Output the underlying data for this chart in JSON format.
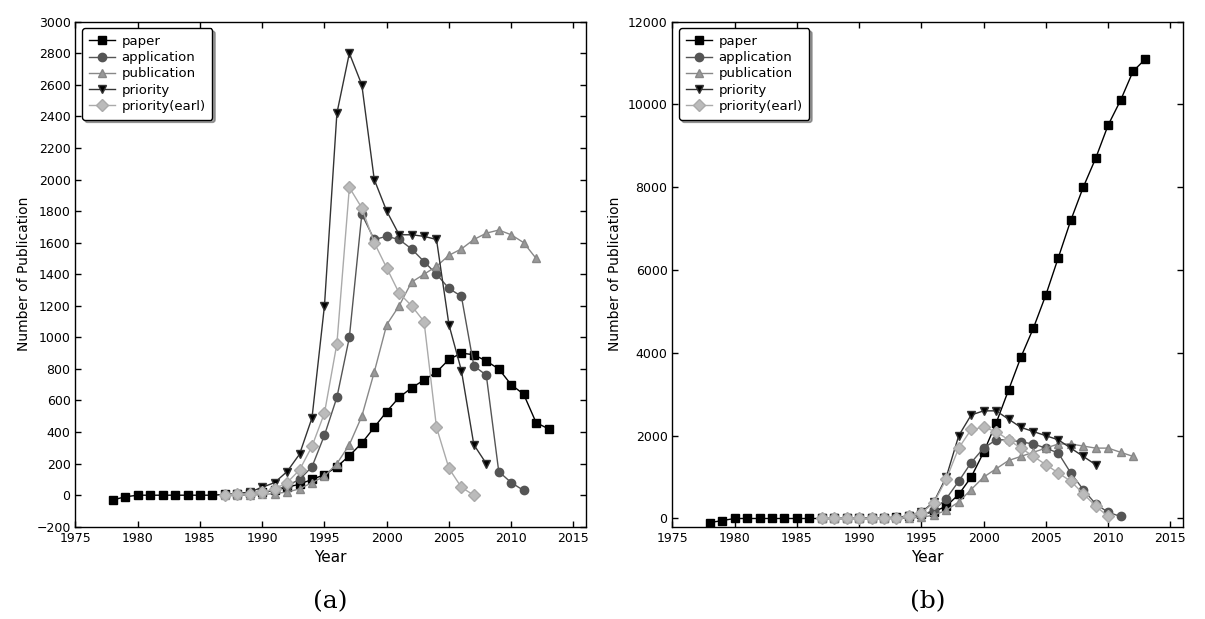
{
  "a": {
    "years": [
      1978,
      1979,
      1980,
      1981,
      1982,
      1983,
      1984,
      1985,
      1986,
      1987,
      1988,
      1989,
      1990,
      1991,
      1992,
      1993,
      1994,
      1995,
      1996,
      1997,
      1998,
      1999,
      2000,
      2001,
      2002,
      2003,
      2004,
      2005,
      2006,
      2007,
      2008,
      2009,
      2010,
      2011,
      2012,
      2013
    ],
    "paper": [
      -30,
      -10,
      0,
      0,
      0,
      0,
      0,
      0,
      0,
      5,
      10,
      15,
      20,
      30,
      50,
      70,
      100,
      130,
      180,
      250,
      330,
      430,
      530,
      620,
      680,
      730,
      780,
      860,
      900,
      890,
      850,
      800,
      700,
      640,
      460,
      420
    ],
    "application": [
      null,
      null,
      null,
      null,
      null,
      null,
      null,
      null,
      null,
      0,
      5,
      10,
      20,
      30,
      60,
      100,
      180,
      380,
      620,
      1000,
      1780,
      1620,
      1640,
      1620,
      1560,
      1480,
      1400,
      1310,
      1260,
      820,
      760,
      150,
      80,
      30,
      null,
      null
    ],
    "publication": [
      null,
      null,
      null,
      null,
      null,
      null,
      null,
      null,
      null,
      0,
      0,
      0,
      5,
      10,
      20,
      40,
      80,
      120,
      200,
      320,
      500,
      780,
      1080,
      1200,
      1350,
      1400,
      1450,
      1520,
      1560,
      1620,
      1660,
      1680,
      1650,
      1600,
      1500,
      null
    ],
    "priority": [
      null,
      null,
      null,
      null,
      null,
      null,
      null,
      null,
      null,
      0,
      10,
      20,
      50,
      80,
      150,
      260,
      490,
      1200,
      2420,
      2800,
      2600,
      2000,
      1800,
      1650,
      1650,
      1640,
      1620,
      1080,
      790,
      320,
      200,
      null,
      null,
      null,
      null,
      null
    ],
    "priority_earl": [
      null,
      null,
      null,
      null,
      null,
      null,
      null,
      null,
      null,
      0,
      5,
      10,
      20,
      40,
      80,
      160,
      310,
      520,
      960,
      1950,
      1820,
      1600,
      1440,
      1280,
      1200,
      1100,
      430,
      170,
      50,
      0,
      null,
      null,
      null,
      null,
      null,
      null
    ]
  },
  "b": {
    "years": [
      1978,
      1979,
      1980,
      1981,
      1982,
      1983,
      1984,
      1985,
      1986,
      1987,
      1988,
      1989,
      1990,
      1991,
      1992,
      1993,
      1994,
      1995,
      1996,
      1997,
      1998,
      1999,
      2000,
      2001,
      2002,
      2003,
      2004,
      2005,
      2006,
      2007,
      2008,
      2009,
      2010,
      2011,
      2012,
      2013
    ],
    "paper": [
      -100,
      -50,
      0,
      0,
      0,
      0,
      0,
      0,
      0,
      0,
      0,
      5,
      10,
      15,
      20,
      30,
      60,
      100,
      160,
      300,
      580,
      1000,
      1600,
      2300,
      3100,
      3900,
      4600,
      5400,
      6300,
      7200,
      8000,
      8700,
      9500,
      10100,
      10800,
      11100
    ],
    "application": [
      null,
      null,
      null,
      null,
      null,
      null,
      null,
      null,
      null,
      0,
      0,
      0,
      0,
      0,
      5,
      10,
      30,
      80,
      200,
      480,
      900,
      1350,
      1700,
      1900,
      1900,
      1850,
      1800,
      1700,
      1580,
      1100,
      700,
      350,
      150,
      50,
      null,
      null
    ],
    "publication": [
      null,
      null,
      null,
      null,
      null,
      null,
      null,
      null,
      null,
      0,
      0,
      0,
      0,
      0,
      0,
      5,
      10,
      30,
      80,
      200,
      400,
      700,
      1000,
      1200,
      1400,
      1500,
      1600,
      1700,
      1800,
      1800,
      1750,
      1700,
      1700,
      1600,
      1500,
      null
    ],
    "priority": [
      null,
      null,
      null,
      null,
      null,
      null,
      null,
      null,
      null,
      0,
      0,
      0,
      0,
      0,
      10,
      20,
      60,
      150,
      400,
      1000,
      2000,
      2500,
      2600,
      2600,
      2400,
      2200,
      2100,
      2000,
      1900,
      1700,
      1500,
      1300,
      null,
      null,
      null,
      null
    ],
    "priority_earl": [
      null,
      null,
      null,
      null,
      null,
      null,
      null,
      null,
      null,
      0,
      0,
      0,
      0,
      0,
      5,
      15,
      50,
      130,
      380,
      950,
      1700,
      2150,
      2200,
      2100,
      1900,
      1700,
      1500,
      1300,
      1100,
      900,
      600,
      300,
      50,
      null,
      null,
      null
    ]
  },
  "series_keys": [
    "paper",
    "application",
    "publication",
    "priority",
    "priority_earl"
  ],
  "legend_labels": [
    "paper",
    "application",
    "publication",
    "priority",
    "priority(earl)"
  ],
  "line_colors": [
    "#000000",
    "#555555",
    "#888888",
    "#333333",
    "#aaaaaa"
  ],
  "marker_colors": [
    "#000000",
    "#555555",
    "#999999",
    "#000000",
    "#bbbbbb"
  ],
  "markers": [
    "s",
    "o",
    "^",
    "v",
    "D"
  ],
  "xlim": [
    1975,
    2016
  ],
  "a_ylim": [
    -200,
    3000
  ],
  "b_ylim": [
    -200,
    12000
  ],
  "a_yticks": [
    -200,
    0,
    200,
    400,
    600,
    800,
    1000,
    1200,
    1400,
    1600,
    1800,
    2000,
    2200,
    2400,
    2600,
    2800,
    3000
  ],
  "b_yticks": [
    0,
    2000,
    4000,
    6000,
    8000,
    10000,
    12000
  ],
  "xticks": [
    1975,
    1980,
    1985,
    1990,
    1995,
    2000,
    2005,
    2010,
    2015
  ],
  "xlabel": "Year",
  "ylabel": "Number of Publication",
  "label_a": "(a)",
  "label_b": "(b)",
  "markersize": 6,
  "linewidth": 1.0
}
